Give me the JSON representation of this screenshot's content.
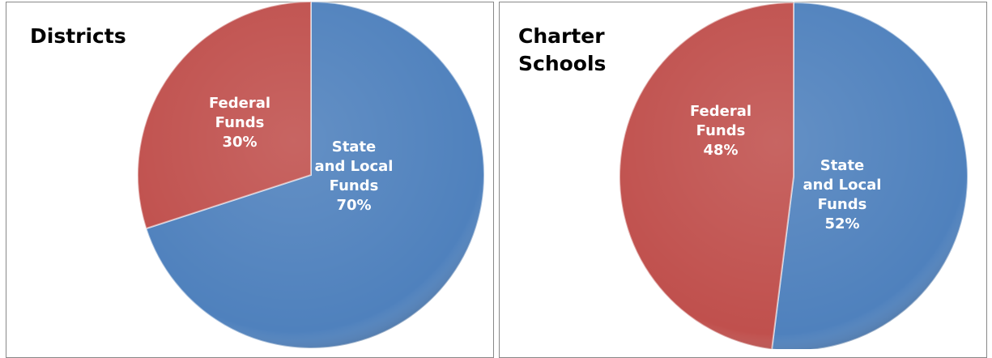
{
  "chart_data": [
    {
      "type": "pie",
      "title": "Districts",
      "categories": [
        "State\nand Local\nFunds",
        "Federal\nFunds"
      ],
      "values": [
        70,
        30
      ],
      "value_labels": [
        "70%",
        "30%"
      ],
      "colors": [
        "#4f81bd",
        "#c0504d"
      ]
    },
    {
      "type": "pie",
      "title": "Charter\nSchools",
      "categories": [
        "State\nand Local\nFunds",
        "Federal\nFunds"
      ],
      "values": [
        52,
        48
      ],
      "value_labels": [
        "52%",
        "48%"
      ],
      "colors": [
        "#4f81bd",
        "#c0504d"
      ]
    }
  ]
}
